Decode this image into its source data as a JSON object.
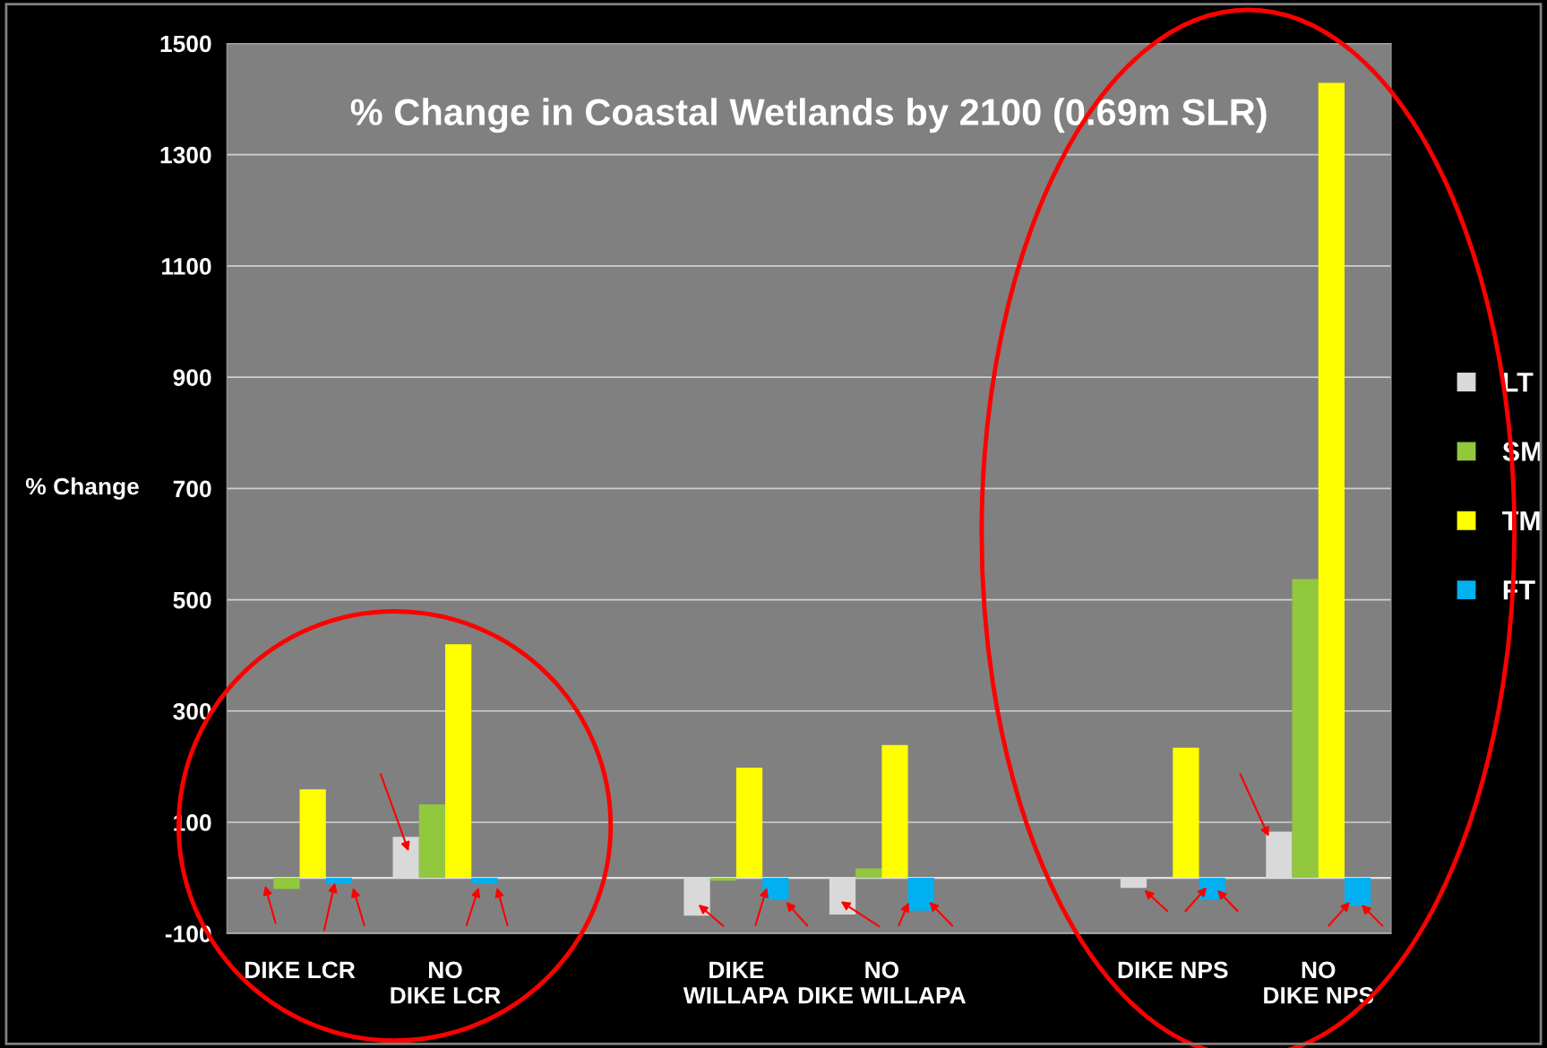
{
  "chart_data": {
    "type": "bar",
    "title": "% Change in Coastal Wetlands by 2100 (0.69m SLR)",
    "ylabel": "% Change",
    "categories": [
      "DIKE LCR",
      "NO DIKE LCR",
      null,
      "DIKE WILLAPA",
      "NO DIKE WILLAPA",
      null,
      "DIKE NPS",
      "NO DIKE NPS"
    ],
    "series": [
      {
        "name": "LT",
        "color": "#d9d9d9",
        "values": [
          0,
          74,
          null,
          -68,
          -66,
          null,
          -18,
          83
        ]
      },
      {
        "name": "SM",
        "color": "#92c83e",
        "values": [
          -20,
          132,
          null,
          -5,
          17,
          null,
          0,
          537
        ]
      },
      {
        "name": "TM",
        "color": "#ffff00",
        "values": [
          159,
          420,
          null,
          198,
          239,
          null,
          234,
          1429
        ]
      },
      {
        "name": "FT",
        "color": "#00b0f0",
        "values": [
          -10,
          -10,
          null,
          -40,
          -59,
          null,
          -40,
          -50
        ]
      }
    ],
    "ylim": [
      -100,
      1500
    ],
    "yticks": [
      -100,
      100,
      300,
      500,
      700,
      900,
      1100,
      1300,
      1500
    ],
    "grid": "y",
    "legend": "right"
  }
}
